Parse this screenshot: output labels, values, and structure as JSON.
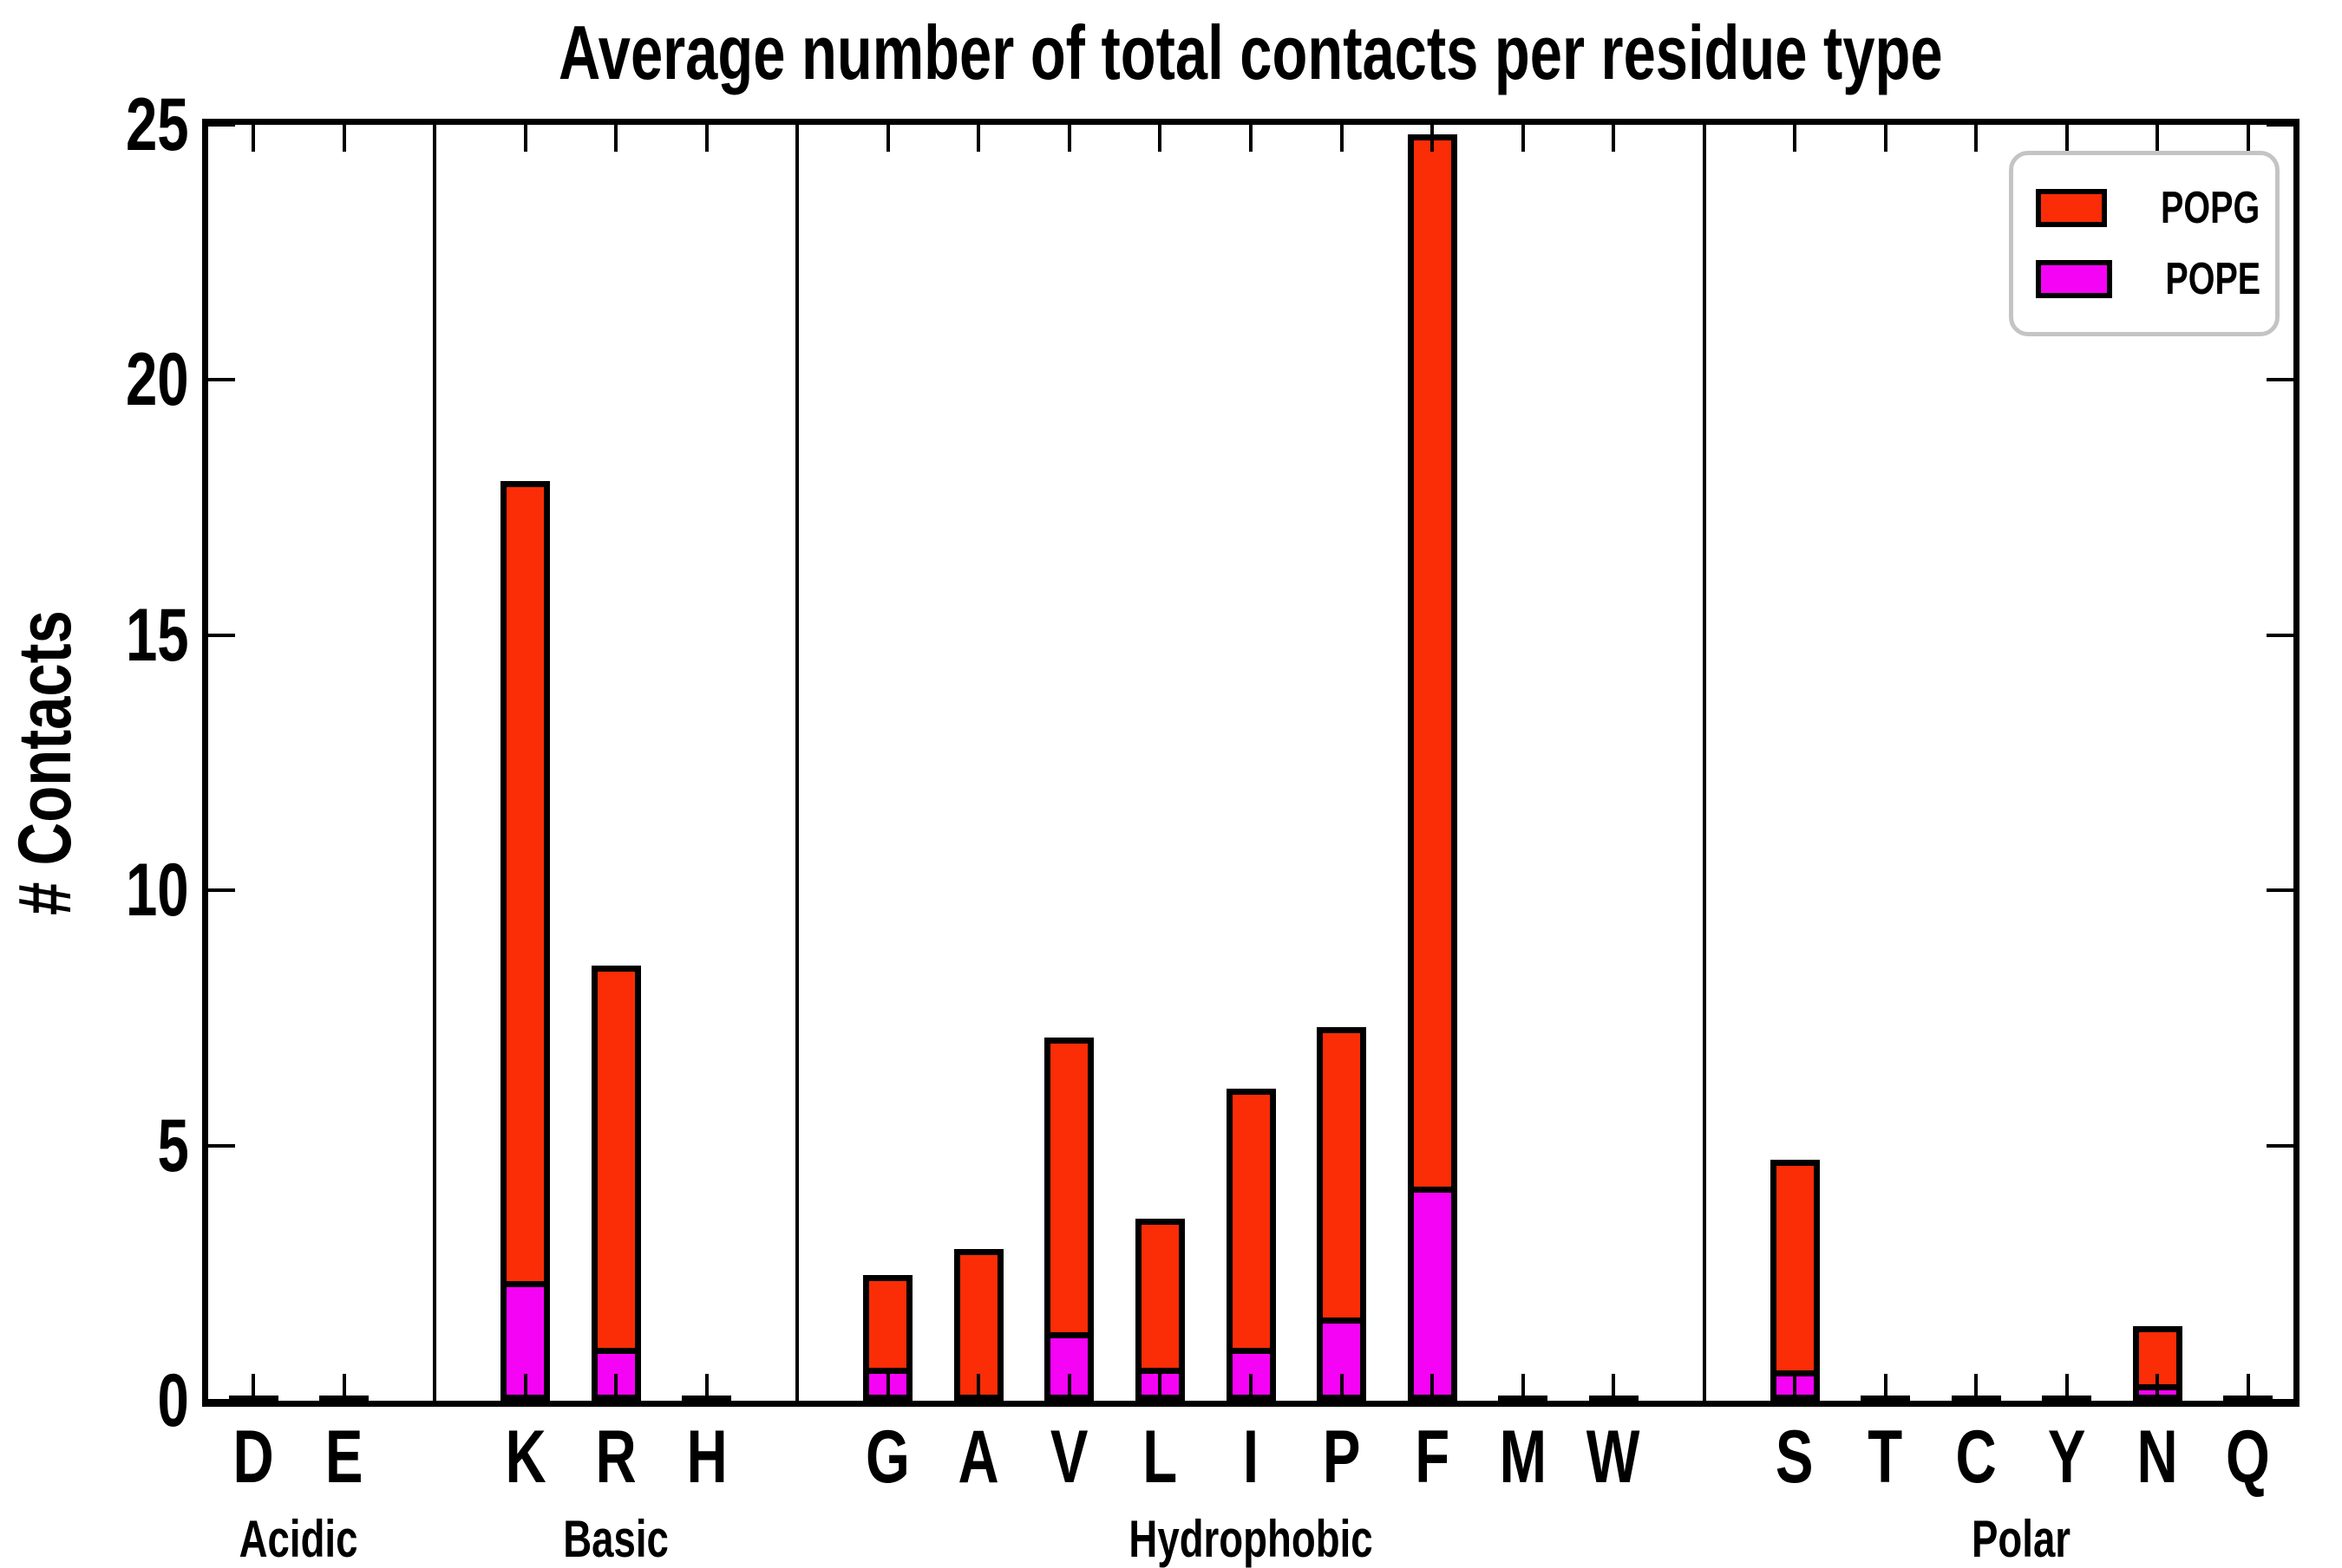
{
  "title": "Average number of total contacts per residue type",
  "y_axis": {
    "label": "# Contacts",
    "min": 0,
    "max": 25,
    "ticks": [
      0,
      5,
      10,
      15,
      20,
      25
    ]
  },
  "legend": {
    "items": [
      {
        "label": "POPG",
        "color": "#FA2D07"
      },
      {
        "label": "POPE",
        "color": "#F503F5"
      }
    ]
  },
  "colors": {
    "popg": "#FA2D07",
    "pope": "#F503F5",
    "axis": "#000000",
    "legend_border": "#C4C4C4",
    "background": "#FFFFFF"
  },
  "chart_data": {
    "type": "bar",
    "stacked": true,
    "title": "Average number of total contacts per residue type",
    "xlabel": "",
    "ylabel": "# Contacts",
    "ylim": [
      0,
      25
    ],
    "yticks": [
      0,
      5,
      10,
      15,
      20,
      25
    ],
    "grid": false,
    "legend_position": "upper right",
    "series": [
      {
        "name": "POPG",
        "color": "#FA2D07",
        "stack_role": "top-segment"
      },
      {
        "name": "POPE",
        "color": "#F503F5",
        "stack_role": "bottom-segment"
      }
    ],
    "groups": [
      {
        "label": "Acidic",
        "residues": [
          {
            "label": "D",
            "total": 0.04,
            "pope": 0
          },
          {
            "label": "E",
            "total": 0.04,
            "pope": 0
          }
        ]
      },
      {
        "label": "Basic",
        "residues": [
          {
            "label": "K",
            "total": 17.9,
            "pope": 2.1
          },
          {
            "label": "R",
            "total": 8.4,
            "pope": 0.8
          },
          {
            "label": "H",
            "total": 0.05,
            "pope": 0
          }
        ]
      },
      {
        "label": "Hydrophobic",
        "residues": [
          {
            "label": "G",
            "total": 2.35,
            "pope": 0.4
          },
          {
            "label": "A",
            "total": 2.85,
            "pope": 0
          },
          {
            "label": "V",
            "total": 7.0,
            "pope": 1.1
          },
          {
            "label": "L",
            "total": 3.45,
            "pope": 0.4
          },
          {
            "label": "I",
            "total": 6.0,
            "pope": 0.8
          },
          {
            "label": "P",
            "total": 7.2,
            "pope": 1.4
          },
          {
            "label": "F",
            "total": 24.7,
            "pope": 3.95
          },
          {
            "label": "M",
            "total": 0.04,
            "pope": 0
          },
          {
            "label": "W",
            "total": 0.05,
            "pope": 0
          }
        ]
      },
      {
        "label": "Polar",
        "residues": [
          {
            "label": "S",
            "total": 4.6,
            "pope": 0.35
          },
          {
            "label": "T",
            "total": 0.04,
            "pope": 0
          },
          {
            "label": "C",
            "total": 0.03,
            "pope": 0
          },
          {
            "label": "Y",
            "total": 0.04,
            "pope": 0
          },
          {
            "label": "N",
            "total": 1.35,
            "pope": 0.08
          },
          {
            "label": "Q",
            "total": 0.03,
            "pope": 0
          }
        ]
      }
    ]
  }
}
